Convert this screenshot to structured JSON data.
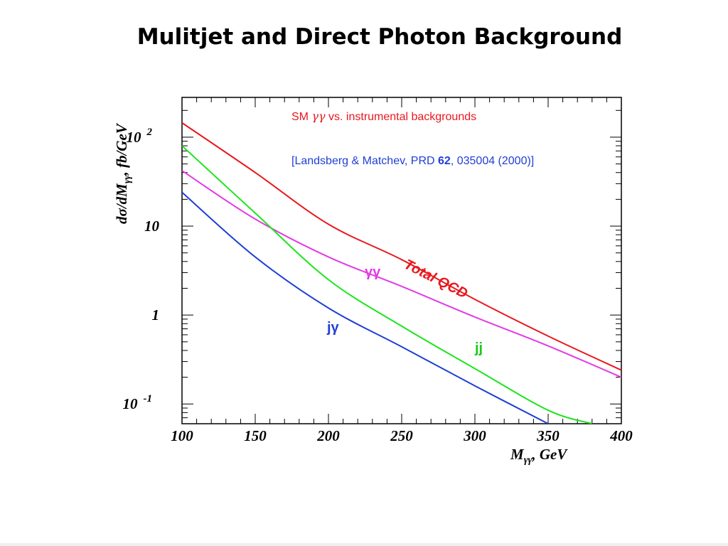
{
  "slide": {
    "title": "Mulitjet and Direct Photon Background"
  },
  "chart_data": {
    "type": "line",
    "xlabel": "M",
    "xlabel_sub": "γγ",
    "xlabel_unit": ",  GeV",
    "ylabel": "dσ/dM",
    "ylabel_sub": "γγ",
    "ylabel_unit": ",  fb/GeV",
    "xlim": [
      100,
      400
    ],
    "ylim": [
      0.06,
      280
    ],
    "yscale": "log",
    "grid": false,
    "x_ticks": [
      100,
      150,
      200,
      250,
      300,
      350,
      400
    ],
    "x_tick_labels": [
      "100",
      "150",
      "200",
      "250",
      "300",
      "350",
      "400"
    ],
    "y_ticks": [
      0.1,
      1,
      10,
      100
    ],
    "y_tick_labels": [
      {
        "base": "10",
        "exp": "-1"
      },
      {
        "base": "1",
        "exp": ""
      },
      {
        "base": "10",
        "exp": ""
      },
      {
        "base": "10",
        "exp": "2"
      }
    ],
    "annotations": {
      "header_prefix": "SM ",
      "header_symbol": "γγ",
      "header_suffix": " vs. instrumental backgrounds",
      "reference_prefix": "[Landsberg & Matchev, PRD ",
      "reference_volume": "62",
      "reference_suffix": ", 035004 (2000)]"
    },
    "series": [
      {
        "name": "Total QCD",
        "color": "#e8191f",
        "label_color": "#e8191f",
        "x": [
          100,
          150,
          200,
          250,
          300,
          350,
          400
        ],
        "y": [
          145,
          40,
          10.5,
          4.2,
          1.5,
          0.58,
          0.24
        ]
      },
      {
        "name": "γγ",
        "color": "#e23ce3",
        "label_color": "#e23ce3",
        "x": [
          100,
          150,
          200,
          250,
          300,
          350,
          400
        ],
        "y": [
          42,
          12,
          4.5,
          2.1,
          0.95,
          0.45,
          0.2
        ]
      },
      {
        "name": "jj",
        "color": "#1ee41e",
        "label_color": "#1ec81e",
        "x": [
          100,
          150,
          200,
          250,
          300,
          350,
          380
        ],
        "y": [
          80,
          14,
          2.5,
          0.75,
          0.25,
          0.085,
          0.06
        ]
      },
      {
        "name": "jγ",
        "color": "#1f3fd6",
        "label_color": "#1f3fd6",
        "x": [
          100,
          150,
          200,
          250,
          300,
          350
        ],
        "y": [
          24,
          4.5,
          1.2,
          0.44,
          0.16,
          0.06
        ]
      }
    ]
  }
}
